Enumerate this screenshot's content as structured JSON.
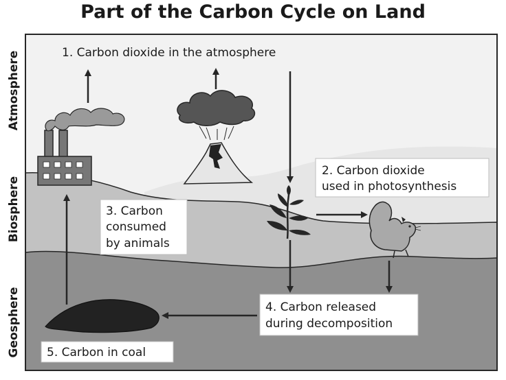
{
  "title": "Part of the Carbon Cycle on Land",
  "side_labels": {
    "atmosphere": "Atmosphere",
    "biosphere": "Biosphere",
    "geosphere": "Geosphere"
  },
  "captions": {
    "c1": "1. Carbon dioxide in the atmosphere",
    "c2_line1": "2. Carbon dioxide",
    "c2_line2": "used in photosynthesis",
    "c3_line1": "3. Carbon",
    "c3_line2": "consumed",
    "c3_line3": "by animals",
    "c4_line1": "4. Carbon released",
    "c4_line2": "during decomposition",
    "c5": "5. Carbon in coal"
  },
  "icons": [
    "factory-icon",
    "smoke-cloud-icon",
    "volcano-icon",
    "ash-cloud-icon",
    "plant-icon",
    "squirrel-icon",
    "coal-pile-icon"
  ],
  "colors": {
    "sky": "#f2f2f2",
    "hill": "#e6e6e6",
    "biosphere": "#c2c2c2",
    "geosphere": "#8f8f8f",
    "factory": "#777777",
    "cloud": "#555555",
    "coal": "#222222",
    "arrow": "#262626"
  }
}
